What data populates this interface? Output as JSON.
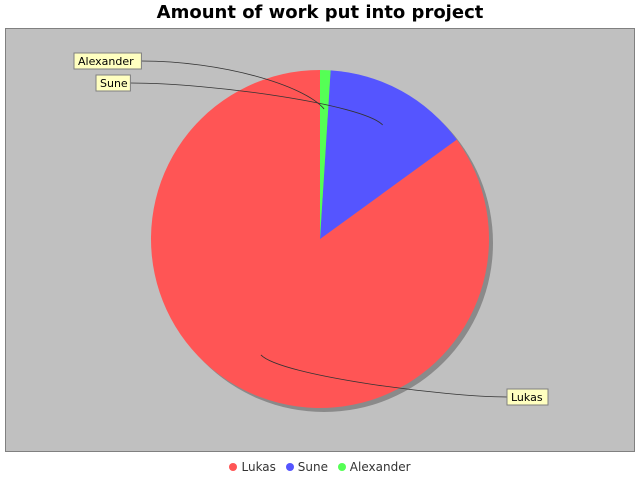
{
  "chart_data": {
    "type": "pie",
    "title": "Amount of work put into project",
    "slices": [
      {
        "label": "Lukas",
        "value": 85.0,
        "color": "#ff5555"
      },
      {
        "label": "Sune",
        "value": 14.0,
        "color": "#5555ff"
      },
      {
        "label": "Alexander",
        "value": 1.0,
        "color": "#55ff55"
      }
    ],
    "legend_position": "bottom",
    "background": "#c0c0c0"
  }
}
